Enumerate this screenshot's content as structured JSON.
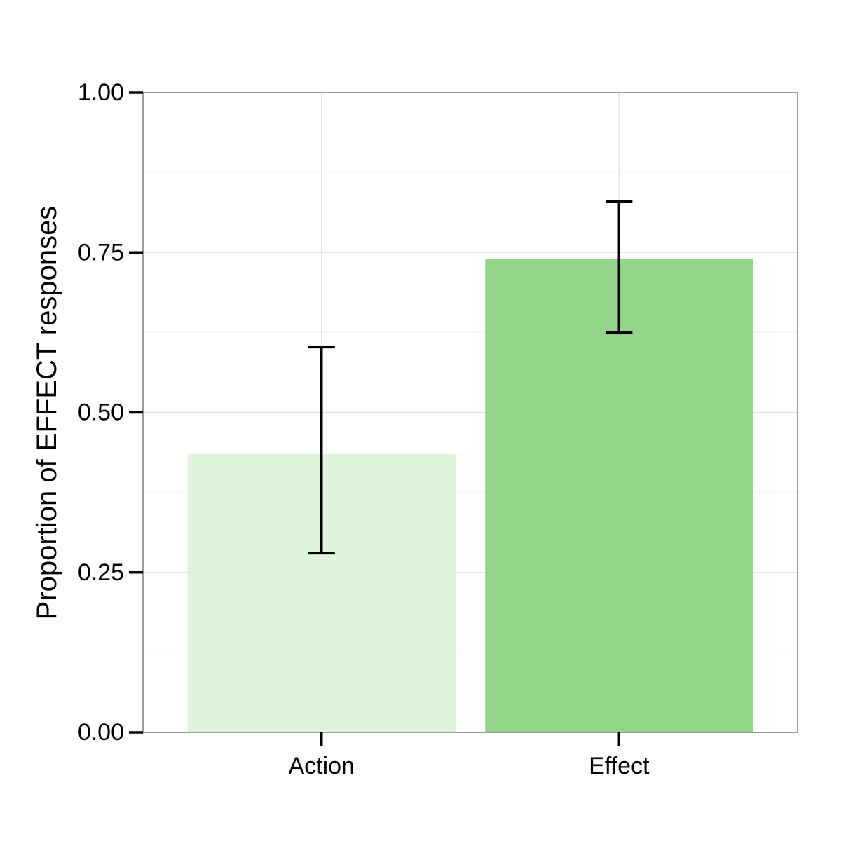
{
  "chart_data": {
    "type": "bar",
    "categories": [
      "Action",
      "Effect"
    ],
    "values": [
      0.435,
      0.74
    ],
    "error_low": [
      0.28,
      0.625
    ],
    "error_high": [
      0.602,
      0.83
    ],
    "ylabel": "Proportion of EFFECT responses",
    "xlabel": "",
    "ylim": [
      0,
      1
    ],
    "yticks": [
      0,
      0.25,
      0.5,
      0.75,
      1
    ],
    "ytick_labels": [
      "0.00",
      "0.25",
      "0.50",
      "0.75",
      "1.00"
    ],
    "grid": true,
    "legend": "none",
    "colors": {
      "bars": [
        "#e0f3db",
        "#95d38a"
      ],
      "error_bars": "#000000",
      "grid_major": "#e5e5e5",
      "grid_minor": "#f5f5f5",
      "panel_border": "#7f7f7f",
      "axis_ticks": "#000000"
    }
  }
}
